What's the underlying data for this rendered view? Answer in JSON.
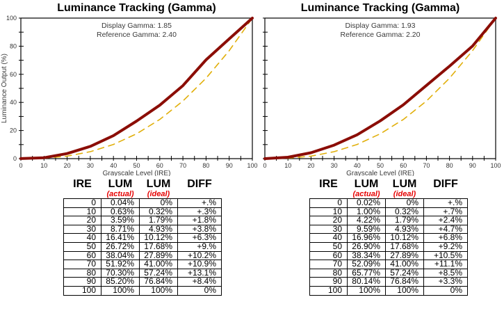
{
  "chart_data": [
    {
      "type": "line",
      "title": "Luminance Tracking (Gamma)",
      "annotations": [
        "Display Gamma: 1.85",
        "Reference Gamma: 2.40"
      ],
      "xlabel": "Grayscale Level (IRE)",
      "ylabel": "Luminance Output (%)",
      "xlim": [
        0,
        100
      ],
      "ylim": [
        0,
        100
      ],
      "xtick_step": 10,
      "xtick_minor_step": 5,
      "ytick_step": 20,
      "ytick_minor_step": 10,
      "show_y_labels": true,
      "grid": false,
      "legend": "none",
      "x": [
        0,
        10,
        20,
        30,
        40,
        50,
        60,
        70,
        80,
        90,
        100
      ],
      "series": [
        {
          "name": "ideal",
          "values": [
            0,
            0.32,
            1.79,
            4.93,
            10.12,
            17.68,
            27.89,
            41.0,
            57.24,
            76.84,
            100
          ],
          "color": "#e1af0a",
          "dash": "9 7",
          "width": 1.6
        },
        {
          "name": "actual",
          "values": [
            0.04,
            0.63,
            3.59,
            8.71,
            16.41,
            26.72,
            38.04,
            51.92,
            70.3,
            85.2,
            100
          ],
          "color": "#8b0d06",
          "dash": "",
          "width": 4
        }
      ]
    },
    {
      "type": "line",
      "title": "Luminance Tracking (Gamma)",
      "annotations": [
        "Display Gamma: 1.93",
        "Reference Gamma: 2.20"
      ],
      "xlabel": "Grayscale Level (IRE)",
      "ylabel": "",
      "xlim": [
        0,
        100
      ],
      "ylim": [
        0,
        100
      ],
      "xtick_step": 10,
      "xtick_minor_step": 5,
      "ytick_step": 20,
      "ytick_minor_step": 10,
      "show_y_labels": false,
      "grid": false,
      "legend": "none",
      "x": [
        0,
        10,
        20,
        30,
        40,
        50,
        60,
        70,
        80,
        90,
        100
      ],
      "series": [
        {
          "name": "ideal",
          "values": [
            0,
            0.32,
            1.79,
            4.93,
            10.12,
            17.68,
            27.89,
            41.0,
            57.24,
            76.84,
            100
          ],
          "color": "#e1af0a",
          "dash": "9 7",
          "width": 1.6
        },
        {
          "name": "actual",
          "values": [
            0.02,
            1.0,
            4.22,
            9.59,
            16.96,
            26.9,
            38.34,
            52.09,
            65.77,
            80.14,
            100
          ],
          "color": "#8b0d06",
          "dash": "",
          "width": 4
        }
      ]
    },
    {
      "type": "table",
      "columns": [
        "IRE",
        "LUM",
        "LUM",
        "DIFF"
      ],
      "subcolumns": [
        "",
        "(actual)",
        "(ideal)",
        ""
      ],
      "subheader_color": "#e60000",
      "rows": [
        [
          "0",
          "0.04%",
          "0%",
          "+.%"
        ],
        [
          "10",
          "0.63%",
          "0.32%",
          "+.3%"
        ],
        [
          "20",
          "3.59%",
          "1.79%",
          "+1.8%"
        ],
        [
          "30",
          "8.71%",
          "4.93%",
          "+3.8%"
        ],
        [
          "40",
          "16.41%",
          "10.12%",
          "+6.3%"
        ],
        [
          "50",
          "26.72%",
          "17.68%",
          "+9.%"
        ],
        [
          "60",
          "38.04%",
          "27.89%",
          "+10.2%"
        ],
        [
          "70",
          "51.92%",
          "41.00%",
          "+10.9%"
        ],
        [
          "80",
          "70.30%",
          "57.24%",
          "+13.1%"
        ],
        [
          "90",
          "85.20%",
          "76.84%",
          "+8.4%"
        ],
        [
          "100",
          "100%",
          "100%",
          "0%"
        ]
      ]
    },
    {
      "type": "table",
      "columns": [
        "IRE",
        "LUM",
        "LUM",
        "DIFF"
      ],
      "subcolumns": [
        "",
        "(actual)",
        "(ideal)",
        ""
      ],
      "subheader_color": "#e60000",
      "rows": [
        [
          "0",
          "0.02%",
          "0%",
          "+.%"
        ],
        [
          "10",
          "1.00%",
          "0.32%",
          "+.7%"
        ],
        [
          "20",
          "4.22%",
          "1.79%",
          "+2.4%"
        ],
        [
          "30",
          "9.59%",
          "4.93%",
          "+4.7%"
        ],
        [
          "40",
          "16.96%",
          "10.12%",
          "+6.8%"
        ],
        [
          "50",
          "26.90%",
          "17.68%",
          "+9.2%"
        ],
        [
          "60",
          "38.34%",
          "27.89%",
          "+10.5%"
        ],
        [
          "70",
          "52.09%",
          "41.00%",
          "+11.1%"
        ],
        [
          "80",
          "65.77%",
          "57.24%",
          "+8.5%"
        ],
        [
          "90",
          "80.14%",
          "76.84%",
          "+3.3%"
        ],
        [
          "100",
          "100%",
          "100%",
          "0%"
        ]
      ]
    }
  ]
}
